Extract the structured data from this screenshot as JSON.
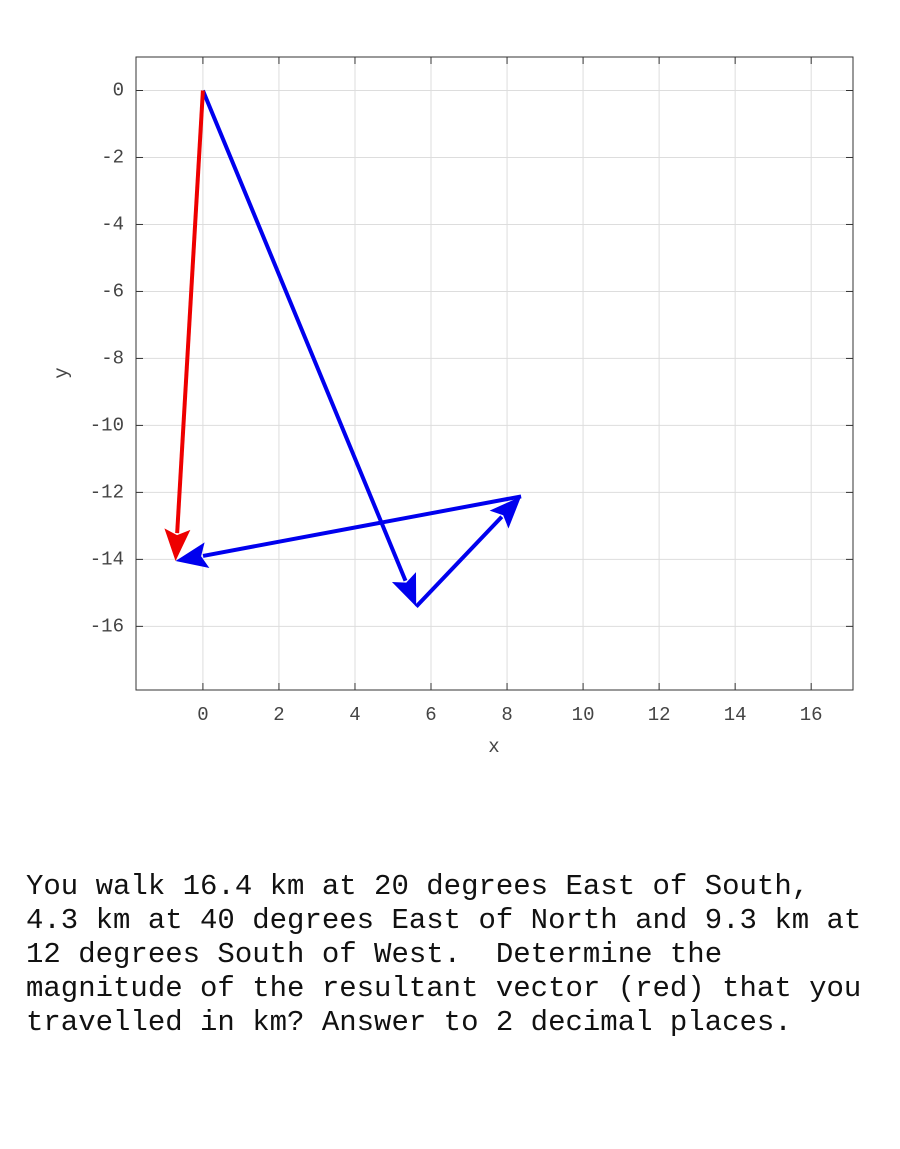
{
  "chart_data": {
    "type": "vector",
    "xlabel": "x",
    "ylabel": "y",
    "xlim": [
      -1.76,
      17.1
    ],
    "ylim": [
      -17.9,
      1
    ],
    "xticks": [
      0,
      2,
      4,
      6,
      8,
      10,
      12,
      14,
      16
    ],
    "yticks": [
      0,
      -2,
      -4,
      -6,
      -8,
      -10,
      -12,
      -14,
      -16
    ],
    "grid": true,
    "vectors": [
      {
        "start": [
          0,
          0
        ],
        "end": [
          5.61,
          -15.41
        ],
        "color": "#0000ee"
      },
      {
        "start": [
          5.61,
          -15.41
        ],
        "end": [
          8.37,
          -12.12
        ],
        "color": "#0000ee"
      },
      {
        "start": [
          8.37,
          -12.12
        ],
        "end": [
          -0.72,
          -14.05
        ],
        "color": "#0000ee"
      },
      {
        "start": [
          0,
          0
        ],
        "end": [
          -0.72,
          -14.05
        ],
        "color": "#ee0000"
      }
    ]
  },
  "question": {
    "lines": [
      "You walk 16.4 km at 20 degrees East of South,",
      "4.3 km at 40 degrees East of North and 9.3 km at",
      "12 degrees South of West.  Determine the",
      "magnitude of the resultant vector (red) that you",
      "travelled in km? Answer to 2 decimal places."
    ]
  }
}
